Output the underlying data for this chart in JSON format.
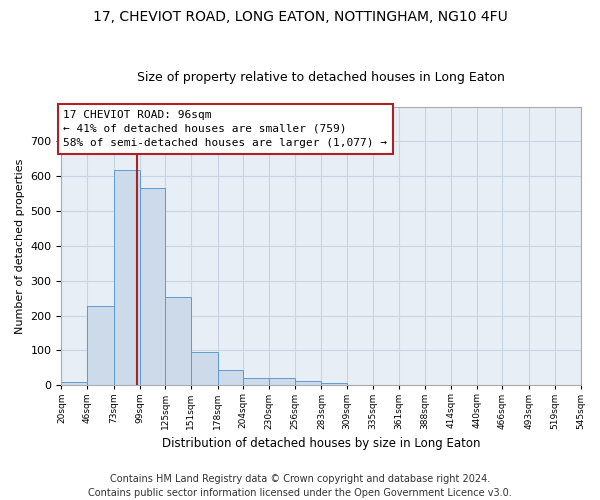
{
  "title1": "17, CHEVIOT ROAD, LONG EATON, NOTTINGHAM, NG10 4FU",
  "title2": "Size of property relative to detached houses in Long Eaton",
  "xlabel": "Distribution of detached houses by size in Long Eaton",
  "ylabel": "Number of detached properties",
  "bar_values": [
    10,
    228,
    617,
    567,
    253,
    96,
    43,
    20,
    20,
    13,
    6,
    0,
    0,
    0,
    0,
    0,
    0,
    0,
    0,
    0
  ],
  "bin_edges": [
    20,
    46,
    73,
    99,
    125,
    151,
    178,
    204,
    230,
    256,
    283,
    309,
    335,
    361,
    388,
    414,
    440,
    466,
    493,
    519,
    545
  ],
  "bin_labels": [
    "20sqm",
    "46sqm",
    "73sqm",
    "99sqm",
    "125sqm",
    "151sqm",
    "178sqm",
    "204sqm",
    "230sqm",
    "256sqm",
    "283sqm",
    "309sqm",
    "335sqm",
    "361sqm",
    "388sqm",
    "414sqm",
    "440sqm",
    "466sqm",
    "493sqm",
    "519sqm",
    "545sqm"
  ],
  "vline_x": 96,
  "bar_facecolor": "#ccdaea",
  "bar_edgecolor": "#5b9bd5",
  "vline_color": "#aa2222",
  "annotation_box_color": "#aa2222",
  "annotation_line1": "17 CHEVIOT ROAD: 96sqm",
  "annotation_line2": "← 41% of detached houses are smaller (759)",
  "annotation_line3": "58% of semi-detached houses are larger (1,077) →",
  "ylim": [
    0,
    800
  ],
  "yticks": [
    0,
    100,
    200,
    300,
    400,
    500,
    600,
    700,
    800
  ],
  "grid_color": "#c8d4e4",
  "bg_color": "#e8eef5",
  "footer_line1": "Contains HM Land Registry data © Crown copyright and database right 2024.",
  "footer_line2": "Contains public sector information licensed under the Open Government Licence v3.0.",
  "title1_fontsize": 10,
  "title2_fontsize": 9,
  "annotation_fontsize": 8,
  "footer_fontsize": 7,
  "ylabel_fontsize": 8,
  "xlabel_fontsize": 8.5,
  "ytick_fontsize": 8,
  "xtick_fontsize": 6.5
}
